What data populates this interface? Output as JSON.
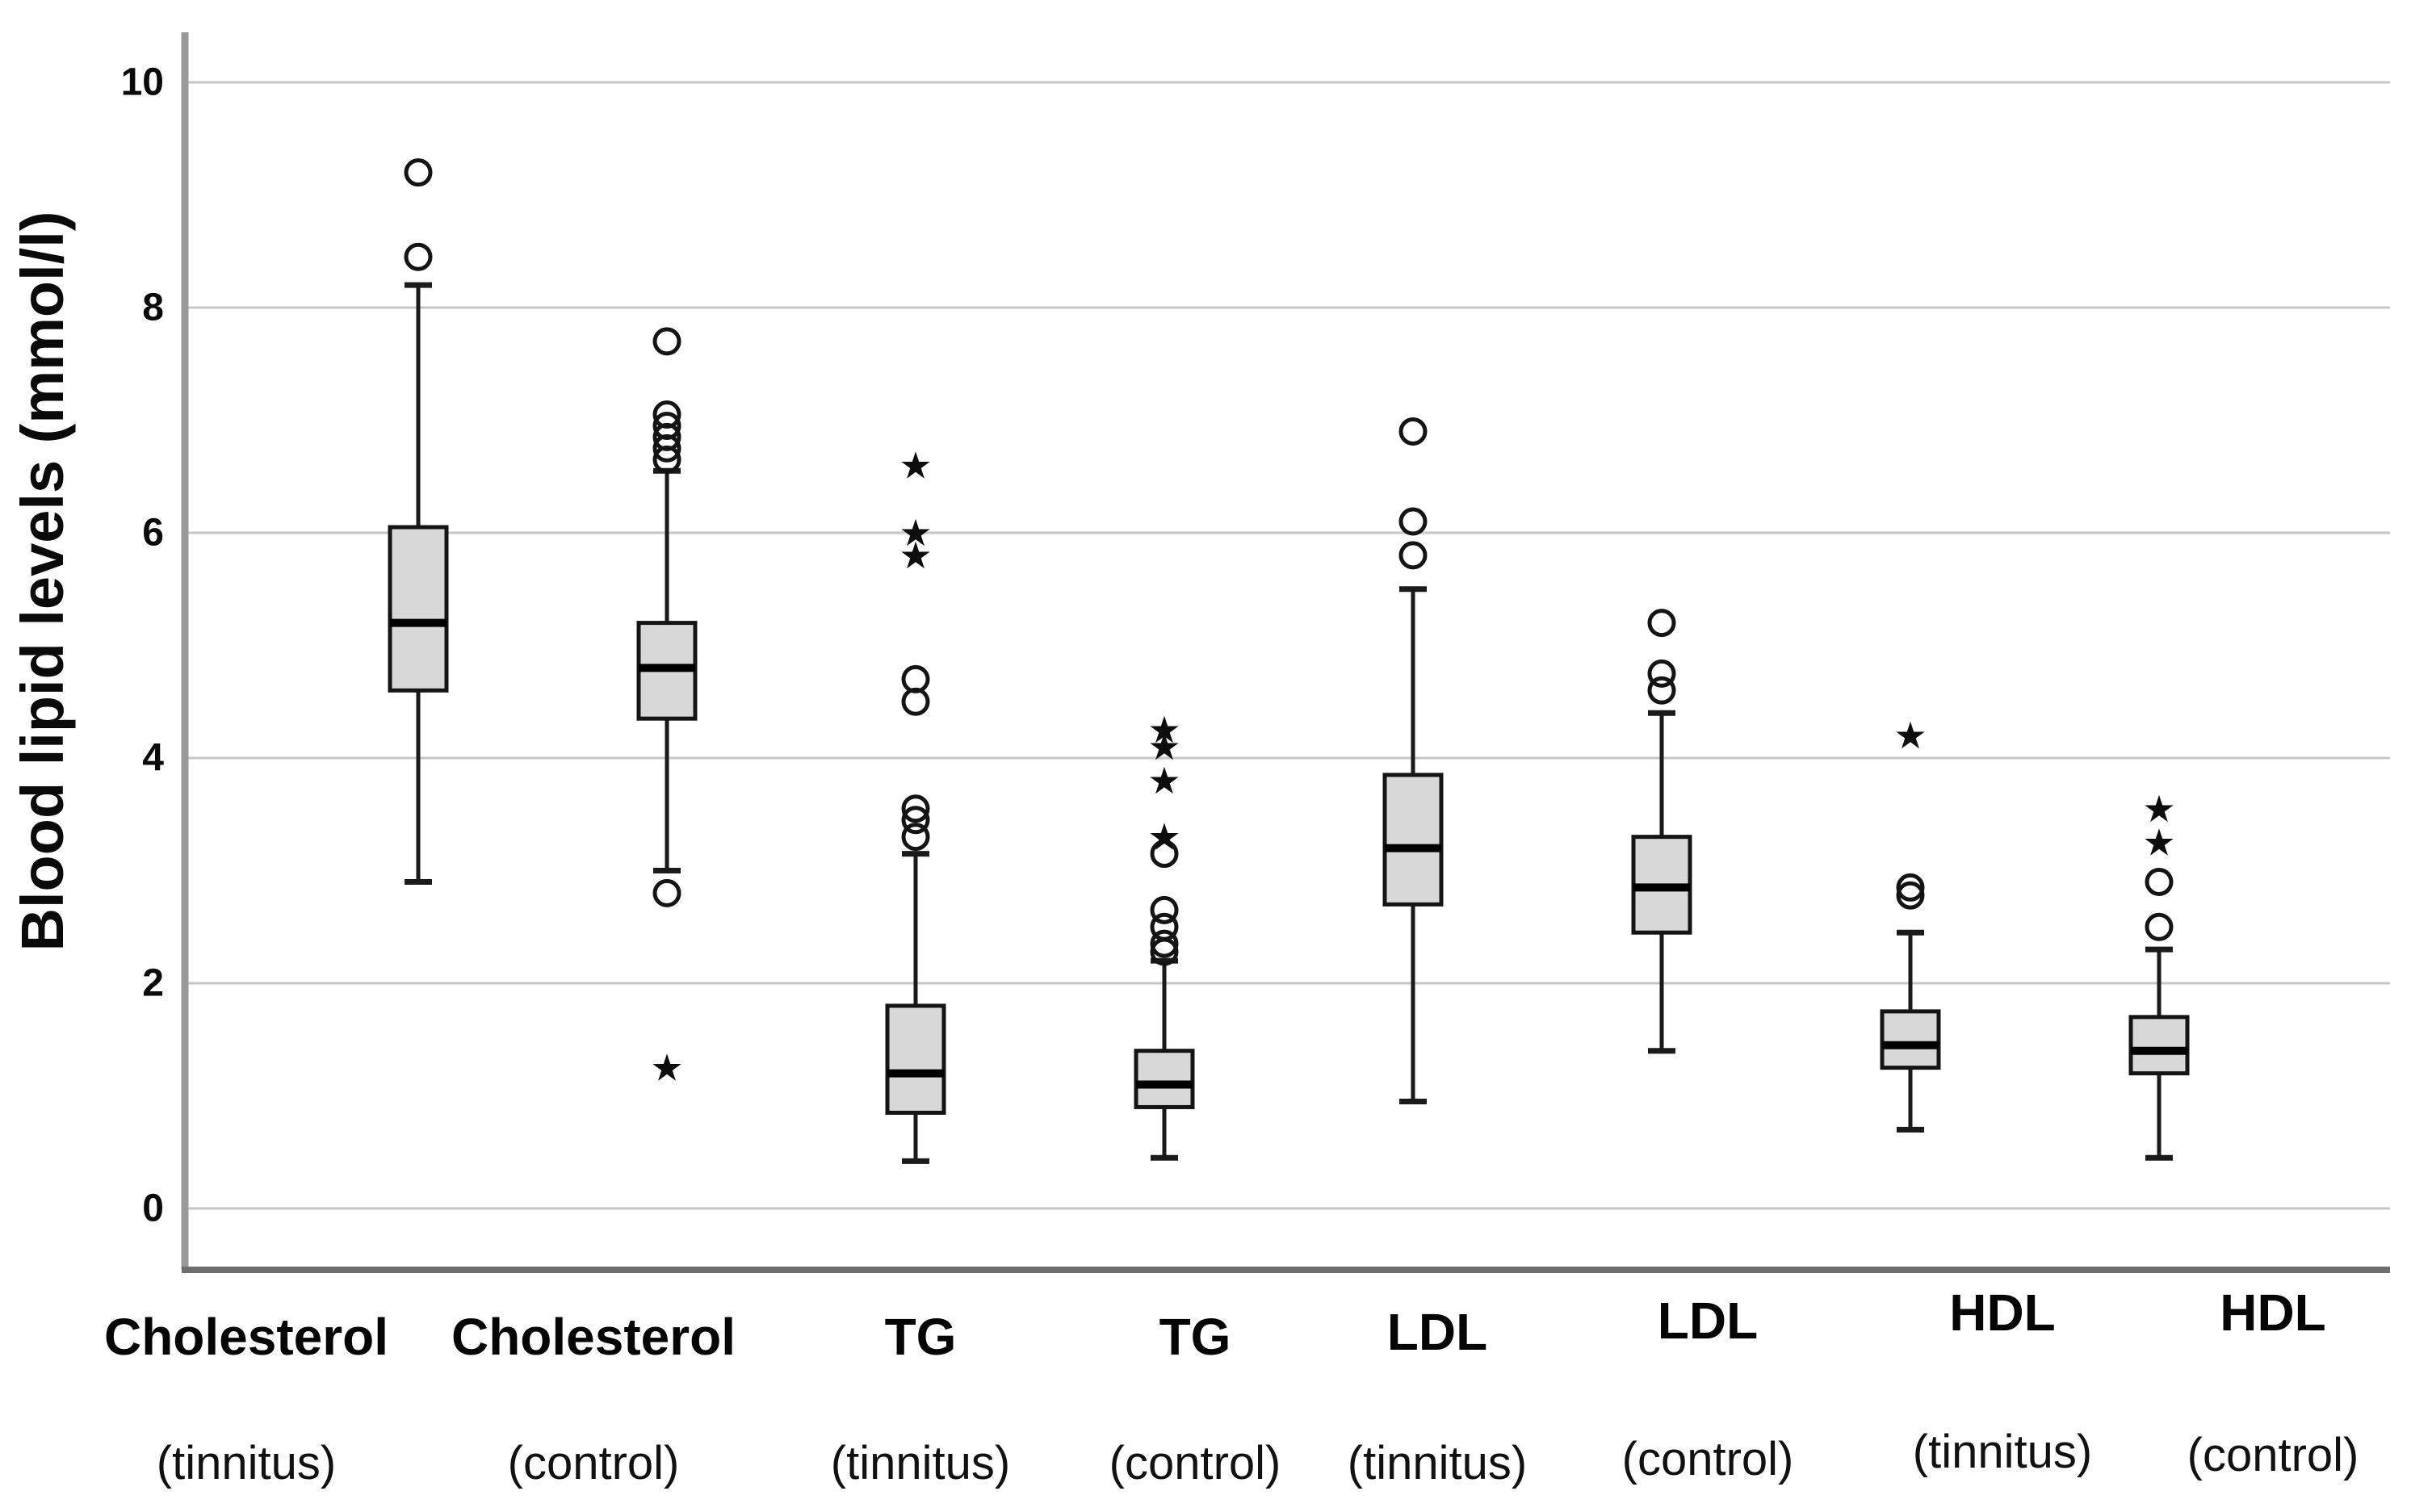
{
  "chart_data": {
    "type": "boxplot",
    "title": "",
    "ylabel": "Blood lipid levels (mmol/l)",
    "xlabel": "",
    "yticks": [
      0,
      2,
      4,
      6,
      8,
      10
    ],
    "ylim": [
      -0.55,
      10.55
    ],
    "grid": true,
    "legend_position": "none",
    "groups": [
      {
        "label": "Cholesterol",
        "condition": "(tinnitus)",
        "whisker_low": 2.9,
        "q1": 4.6,
        "median": 5.2,
        "q3": 6.05,
        "whisker_high": 8.2,
        "outliers_circle": [
          9.2,
          8.45
        ],
        "outliers_star": []
      },
      {
        "label": "Cholesterol",
        "condition": "(control)",
        "whisker_low": 3.0,
        "q1": 4.35,
        "median": 4.8,
        "q3": 5.2,
        "whisker_high": 6.55,
        "outliers_circle": [
          7.7,
          7.05,
          6.95,
          6.85,
          6.75,
          6.65,
          2.8
        ],
        "outliers_star": [
          1.25
        ]
      },
      {
        "label": "TG",
        "condition": "(tinnitus)",
        "whisker_low": 0.42,
        "q1": 0.85,
        "median": 1.2,
        "q3": 1.8,
        "whisker_high": 3.15,
        "outliers_circle": [
          4.7,
          4.5,
          3.55,
          3.45,
          3.3
        ],
        "outliers_star": [
          6.6,
          6.0,
          5.8
        ]
      },
      {
        "label": "TG",
        "condition": "(control)",
        "whisker_low": 0.45,
        "q1": 0.9,
        "median": 1.1,
        "q3": 1.4,
        "whisker_high": 2.2,
        "outliers_circle": [
          3.15,
          2.65,
          2.5,
          2.35,
          2.28
        ],
        "outliers_star": [
          4.25,
          4.1,
          3.8,
          3.3
        ]
      },
      {
        "label": "LDL",
        "condition": "(tinnitus)",
        "whisker_low": 0.95,
        "q1": 2.7,
        "median": 3.2,
        "q3": 3.85,
        "whisker_high": 5.5,
        "outliers_circle": [
          6.9,
          6.1,
          5.8
        ],
        "outliers_star": []
      },
      {
        "label": "LDL",
        "condition": "(control)",
        "whisker_low": 1.4,
        "q1": 2.45,
        "median": 2.85,
        "q3": 3.3,
        "whisker_high": 4.4,
        "outliers_circle": [
          5.2,
          4.75,
          4.6
        ],
        "outliers_star": []
      },
      {
        "label": "HDL",
        "condition": "(tinnitus)",
        "whisker_low": 0.7,
        "q1": 1.25,
        "median": 1.45,
        "q3": 1.75,
        "whisker_high": 2.45,
        "outliers_circle": [
          2.85,
          2.78
        ],
        "outliers_star": [
          4.2
        ]
      },
      {
        "label": "HDL",
        "condition": "(control)",
        "whisker_low": 0.45,
        "q1": 1.2,
        "median": 1.4,
        "q3": 1.7,
        "whisker_high": 2.3,
        "outliers_circle": [
          2.9,
          2.5
        ],
        "outliers_star": [
          3.55,
          3.25
        ]
      }
    ],
    "style": {
      "box_fill": "#d8d8d8",
      "box_stroke": "#141414",
      "median_color": "#000000",
      "whisker_color": "#1a1a1a",
      "grid_color": "#c6c6c6",
      "y_axis_color": "#9a9a9a",
      "x_axis_color": "#6e6e6e",
      "text_color": "#0a0a0a",
      "background": "#ffffff"
    }
  }
}
